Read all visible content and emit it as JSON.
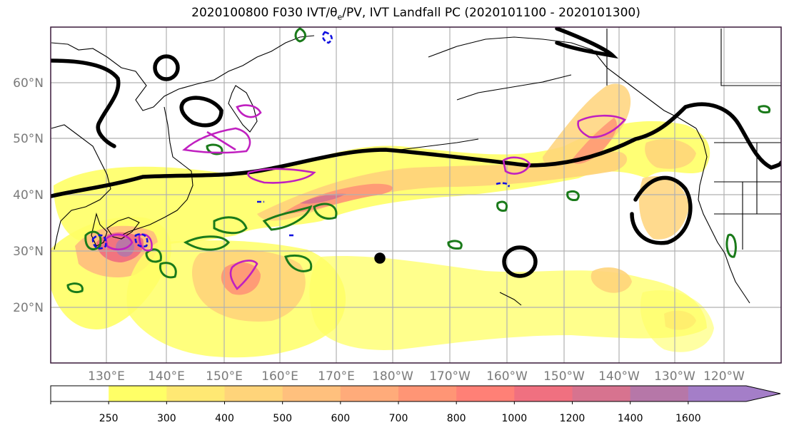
{
  "title": "2020100800 F030 IVT/θe/PV, IVT Landfall PC (2020101100 - 2020101300)",
  "map": {
    "lat_labels": [
      "60°N",
      "50°N",
      "40°N",
      "30°N",
      "20°N"
    ],
    "lon_labels": [
      "130°E",
      "140°E",
      "150°E",
      "160°E",
      "170°E",
      "180°W",
      "170°W",
      "160°W",
      "150°W",
      "140°W",
      "130°W",
      "120°W"
    ]
  },
  "colorbar": {
    "levels": [
      "250",
      "300",
      "400",
      "500",
      "600",
      "700",
      "800",
      "1000",
      "1200",
      "1400",
      "1600"
    ],
    "colors": [
      "#ffffff",
      "#ffff66",
      "#ffe873",
      "#ffd47a",
      "#ffc07d",
      "#ffab7a",
      "#ff9575",
      "#ff8076",
      "#f07080",
      "#d7738f",
      "#b677a8",
      "#a47ec8"
    ]
  },
  "colors": {
    "pc_contour": "#000000",
    "pv_green": "#1a7a1a",
    "theta_magenta": "#c020c0",
    "theta_blue": "#1010e0",
    "coast": "#000000",
    "grid": "#b0b0b0"
  }
}
